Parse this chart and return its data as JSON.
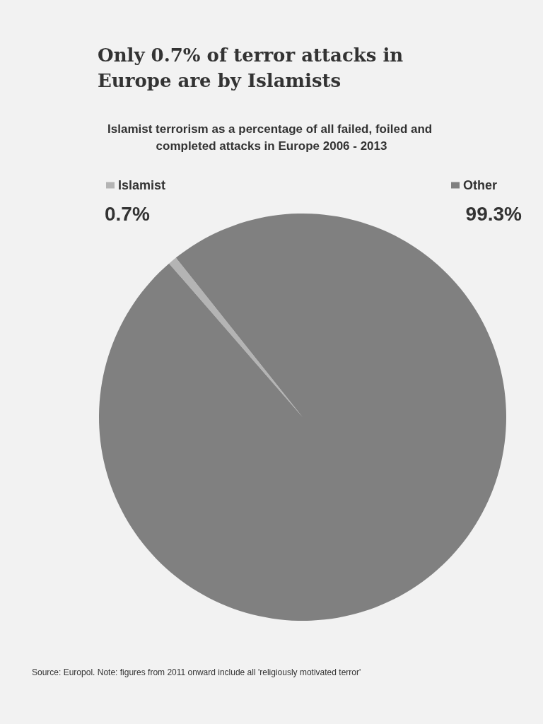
{
  "chart_data": {
    "type": "pie",
    "title": "Only 0.7% of terror attacks in Europe are by Islamists",
    "subtitle": "Islamist terrorism as a percentage of all failed, foiled and completed attacks in Europe 2006 - 2013",
    "categories": [
      "Islamist",
      "Other"
    ],
    "values": [
      0.7,
      99.3
    ],
    "colors": [
      "#b4b4b4",
      "#808080"
    ],
    "value_labels": [
      "0.7%",
      "99.3%"
    ],
    "legend": "top",
    "annotations": [
      "Source: Europol. Note: figures from 2011 onward include all 'religiously motivated terror'"
    ]
  }
}
